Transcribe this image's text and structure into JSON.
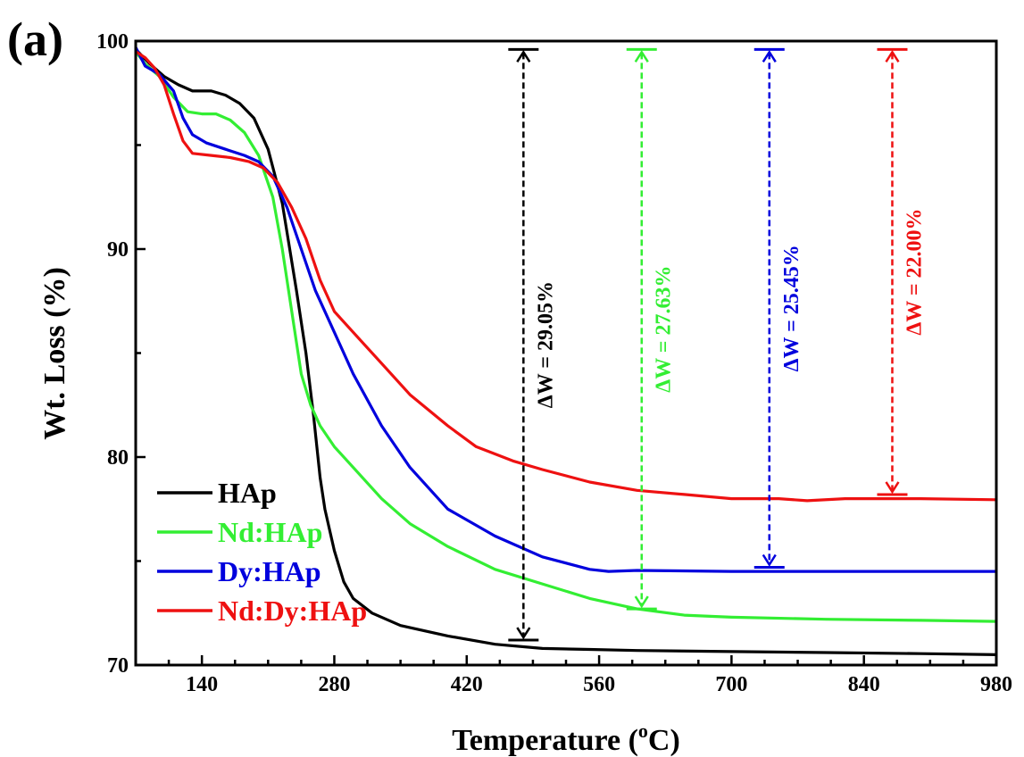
{
  "panel_label": "(a)",
  "chart_data": {
    "type": "line",
    "title": "",
    "xlabel": "Temperature (",
    "xlabel_sup": "o",
    "xlabel_suffix": "C)",
    "ylabel": "Wt. Loss (%)",
    "xlim": [
      70,
      980
    ],
    "ylim": [
      70,
      100
    ],
    "xticks": [
      140,
      280,
      420,
      560,
      700,
      840,
      980
    ],
    "yticks": [
      70,
      80,
      90,
      100
    ],
    "grid": false,
    "legend_position": "bottom-left",
    "series": [
      {
        "name": "HAp",
        "color": "#000000",
        "points": [
          [
            70,
            99.6
          ],
          [
            85,
            98.9
          ],
          [
            100,
            98.3
          ],
          [
            115,
            97.9
          ],
          [
            130,
            97.6
          ],
          [
            150,
            97.6
          ],
          [
            165,
            97.4
          ],
          [
            180,
            97.0
          ],
          [
            195,
            96.3
          ],
          [
            210,
            94.8
          ],
          [
            225,
            92.2
          ],
          [
            240,
            88.0
          ],
          [
            250,
            85.0
          ],
          [
            258,
            82.0
          ],
          [
            265,
            79.0
          ],
          [
            270,
            77.5
          ],
          [
            280,
            75.5
          ],
          [
            290,
            74.0
          ],
          [
            300,
            73.2
          ],
          [
            320,
            72.5
          ],
          [
            350,
            71.9
          ],
          [
            400,
            71.4
          ],
          [
            450,
            71.0
          ],
          [
            500,
            70.8
          ],
          [
            550,
            70.75
          ],
          [
            600,
            70.7
          ],
          [
            700,
            70.65
          ],
          [
            800,
            70.6
          ],
          [
            900,
            70.55
          ],
          [
            980,
            70.5
          ]
        ]
      },
      {
        "name": "Nd:HAp",
        "color": "#33ee33",
        "points": [
          [
            70,
            99.5
          ],
          [
            80,
            98.9
          ],
          [
            95,
            98.3
          ],
          [
            110,
            97.3
          ],
          [
            125,
            96.6
          ],
          [
            140,
            96.5
          ],
          [
            155,
            96.5
          ],
          [
            170,
            96.2
          ],
          [
            185,
            95.6
          ],
          [
            200,
            94.5
          ],
          [
            215,
            92.5
          ],
          [
            225,
            90.0
          ],
          [
            235,
            87.0
          ],
          [
            245,
            84.0
          ],
          [
            255,
            82.5
          ],
          [
            265,
            81.5
          ],
          [
            280,
            80.5
          ],
          [
            300,
            79.5
          ],
          [
            330,
            78.0
          ],
          [
            360,
            76.8
          ],
          [
            400,
            75.7
          ],
          [
            450,
            74.6
          ],
          [
            500,
            73.9
          ],
          [
            550,
            73.2
          ],
          [
            600,
            72.7
          ],
          [
            650,
            72.4
          ],
          [
            700,
            72.3
          ],
          [
            800,
            72.2
          ],
          [
            900,
            72.15
          ],
          [
            980,
            72.1
          ]
        ]
      },
      {
        "name": "Dy:HAp",
        "color": "#0000dd",
        "points": [
          [
            70,
            99.7
          ],
          [
            80,
            98.8
          ],
          [
            95,
            98.4
          ],
          [
            110,
            97.6
          ],
          [
            120,
            96.3
          ],
          [
            130,
            95.5
          ],
          [
            145,
            95.1
          ],
          [
            165,
            94.8
          ],
          [
            185,
            94.5
          ],
          [
            200,
            94.2
          ],
          [
            215,
            93.5
          ],
          [
            230,
            92.0
          ],
          [
            245,
            90.0
          ],
          [
            260,
            88.0
          ],
          [
            280,
            86.0
          ],
          [
            300,
            84.0
          ],
          [
            330,
            81.5
          ],
          [
            360,
            79.5
          ],
          [
            400,
            77.5
          ],
          [
            450,
            76.2
          ],
          [
            500,
            75.2
          ],
          [
            550,
            74.6
          ],
          [
            570,
            74.5
          ],
          [
            600,
            74.55
          ],
          [
            700,
            74.5
          ],
          [
            800,
            74.5
          ],
          [
            900,
            74.5
          ],
          [
            980,
            74.5
          ]
        ]
      },
      {
        "name": "Nd:Dy:HAp",
        "color": "#ee1111",
        "points": [
          [
            70,
            99.5
          ],
          [
            80,
            99.2
          ],
          [
            90,
            98.7
          ],
          [
            100,
            97.9
          ],
          [
            110,
            96.5
          ],
          [
            120,
            95.2
          ],
          [
            130,
            94.6
          ],
          [
            150,
            94.5
          ],
          [
            170,
            94.4
          ],
          [
            190,
            94.2
          ],
          [
            205,
            93.9
          ],
          [
            220,
            93.2
          ],
          [
            235,
            92.0
          ],
          [
            250,
            90.5
          ],
          [
            265,
            88.5
          ],
          [
            280,
            87.0
          ],
          [
            300,
            86.0
          ],
          [
            330,
            84.5
          ],
          [
            360,
            83.0
          ],
          [
            400,
            81.5
          ],
          [
            430,
            80.5
          ],
          [
            470,
            79.8
          ],
          [
            500,
            79.4
          ],
          [
            550,
            78.8
          ],
          [
            600,
            78.4
          ],
          [
            650,
            78.2
          ],
          [
            700,
            78.0
          ],
          [
            750,
            78.0
          ],
          [
            780,
            77.9
          ],
          [
            820,
            78.0
          ],
          [
            900,
            78.0
          ],
          [
            980,
            77.95
          ]
        ]
      }
    ],
    "annotations": [
      {
        "text": "ΔW = 29.05%",
        "color": "#000000",
        "x": 480,
        "y_top": 99.6,
        "y_bottom": 71.2
      },
      {
        "text": "ΔW = 27.63%",
        "color": "#33ee33",
        "x": 605,
        "y_top": 99.6,
        "y_bottom": 72.7
      },
      {
        "text": "ΔW = 25.45%",
        "color": "#0000dd",
        "x": 740,
        "y_top": 99.6,
        "y_bottom": 74.7
      },
      {
        "text": "ΔW = 22.00%",
        "color": "#ee1111",
        "x": 870,
        "y_top": 99.6,
        "y_bottom": 78.2
      }
    ]
  }
}
